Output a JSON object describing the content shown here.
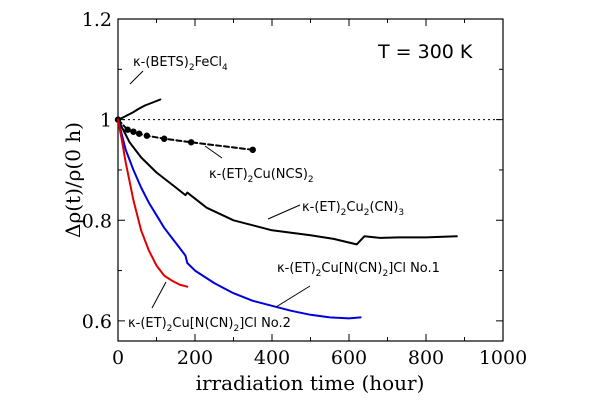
{
  "chart_data": {
    "type": "line",
    "xlabel": "irradiation time (hour)",
    "ylabel": "Δρ(t)/ρ(0 h)",
    "xlim": [
      0,
      1000
    ],
    "ylim": [
      0.56,
      1.2
    ],
    "xticks": [
      "0",
      "200",
      "400",
      "600",
      "800",
      "1000"
    ],
    "yticks": [
      "0.6",
      "0.8",
      "1",
      "1.2"
    ],
    "inset_text": "T = 300 K",
    "reference_line": {
      "y": 1,
      "style": "dotted"
    },
    "series": [
      {
        "name": "κ-(BETS)2FeCl4",
        "color": "#000000",
        "style": "solid",
        "x": [
          0,
          10,
          20,
          30,
          40,
          50,
          60,
          70,
          80,
          90,
          100,
          110
        ],
        "y": [
          1.0,
          1.003,
          1.007,
          1.011,
          1.015,
          1.02,
          1.024,
          1.028,
          1.031,
          1.034,
          1.037,
          1.04
        ]
      },
      {
        "name": "κ-(ET)2Cu(NCS)2",
        "color": "#000000",
        "style": "dashed-with-markers",
        "x": [
          0,
          25,
          40,
          55,
          75,
          120,
          190,
          350
        ],
        "y": [
          1.0,
          0.98,
          0.976,
          0.972,
          0.968,
          0.962,
          0.955,
          0.94
        ]
      },
      {
        "name": "κ-(ET)2Cu2(CN)3",
        "color": "#000000",
        "style": "solid",
        "x": [
          0,
          30,
          60,
          100,
          150,
          175,
          180,
          230,
          300,
          400,
          500,
          560,
          620,
          640,
          680,
          730,
          800,
          880
        ],
        "y": [
          1.0,
          0.955,
          0.925,
          0.895,
          0.865,
          0.85,
          0.855,
          0.825,
          0.8,
          0.78,
          0.77,
          0.763,
          0.752,
          0.768,
          0.765,
          0.766,
          0.766,
          0.768
        ]
      },
      {
        "name": "κ-(ET)2Cu[N(CN)2]Cl No.1",
        "color": "#0000dd",
        "style": "solid",
        "x": [
          0,
          20,
          40,
          60,
          80,
          100,
          120,
          140,
          160,
          175,
          180,
          200,
          250,
          300,
          350,
          400,
          450,
          500,
          550,
          600,
          630
        ],
        "y": [
          1.0,
          0.94,
          0.9,
          0.865,
          0.835,
          0.81,
          0.785,
          0.765,
          0.745,
          0.73,
          0.715,
          0.7,
          0.675,
          0.655,
          0.64,
          0.63,
          0.62,
          0.612,
          0.607,
          0.605,
          0.607
        ]
      },
      {
        "name": "κ-(ET)2Cu[N(CN)2]Cl No.2",
        "color": "#e00000",
        "style": "solid",
        "x": [
          0,
          10,
          20,
          40,
          60,
          80,
          100,
          120,
          140,
          160,
          180
        ],
        "y": [
          1.0,
          0.96,
          0.915,
          0.84,
          0.78,
          0.74,
          0.71,
          0.69,
          0.68,
          0.672,
          0.668
        ]
      }
    ]
  },
  "annotations": {
    "bets": {
      "main": "κ-(BETS)",
      "sub1": "2",
      "mid": "FeCl",
      "sub2": "4"
    },
    "ncs": {
      "main": "κ-(ET)",
      "sub1": "2",
      "mid": "Cu(NCS)",
      "sub2": "2"
    },
    "cn3": {
      "main": "κ-(ET)",
      "sub1": "2",
      "mid": "Cu",
      "sub2": "2",
      "tail": "(CN)",
      "sub3": "3"
    },
    "no1": {
      "main": "κ-(ET)",
      "sub1": "2",
      "mid": "Cu[N(CN)",
      "sub2": "2",
      "tail": "]Cl  No.1"
    },
    "no2": {
      "main": "κ-(ET)",
      "sub1": "2",
      "mid": "Cu[N(CN)",
      "sub2": "2",
      "tail": "]Cl No.2"
    }
  }
}
